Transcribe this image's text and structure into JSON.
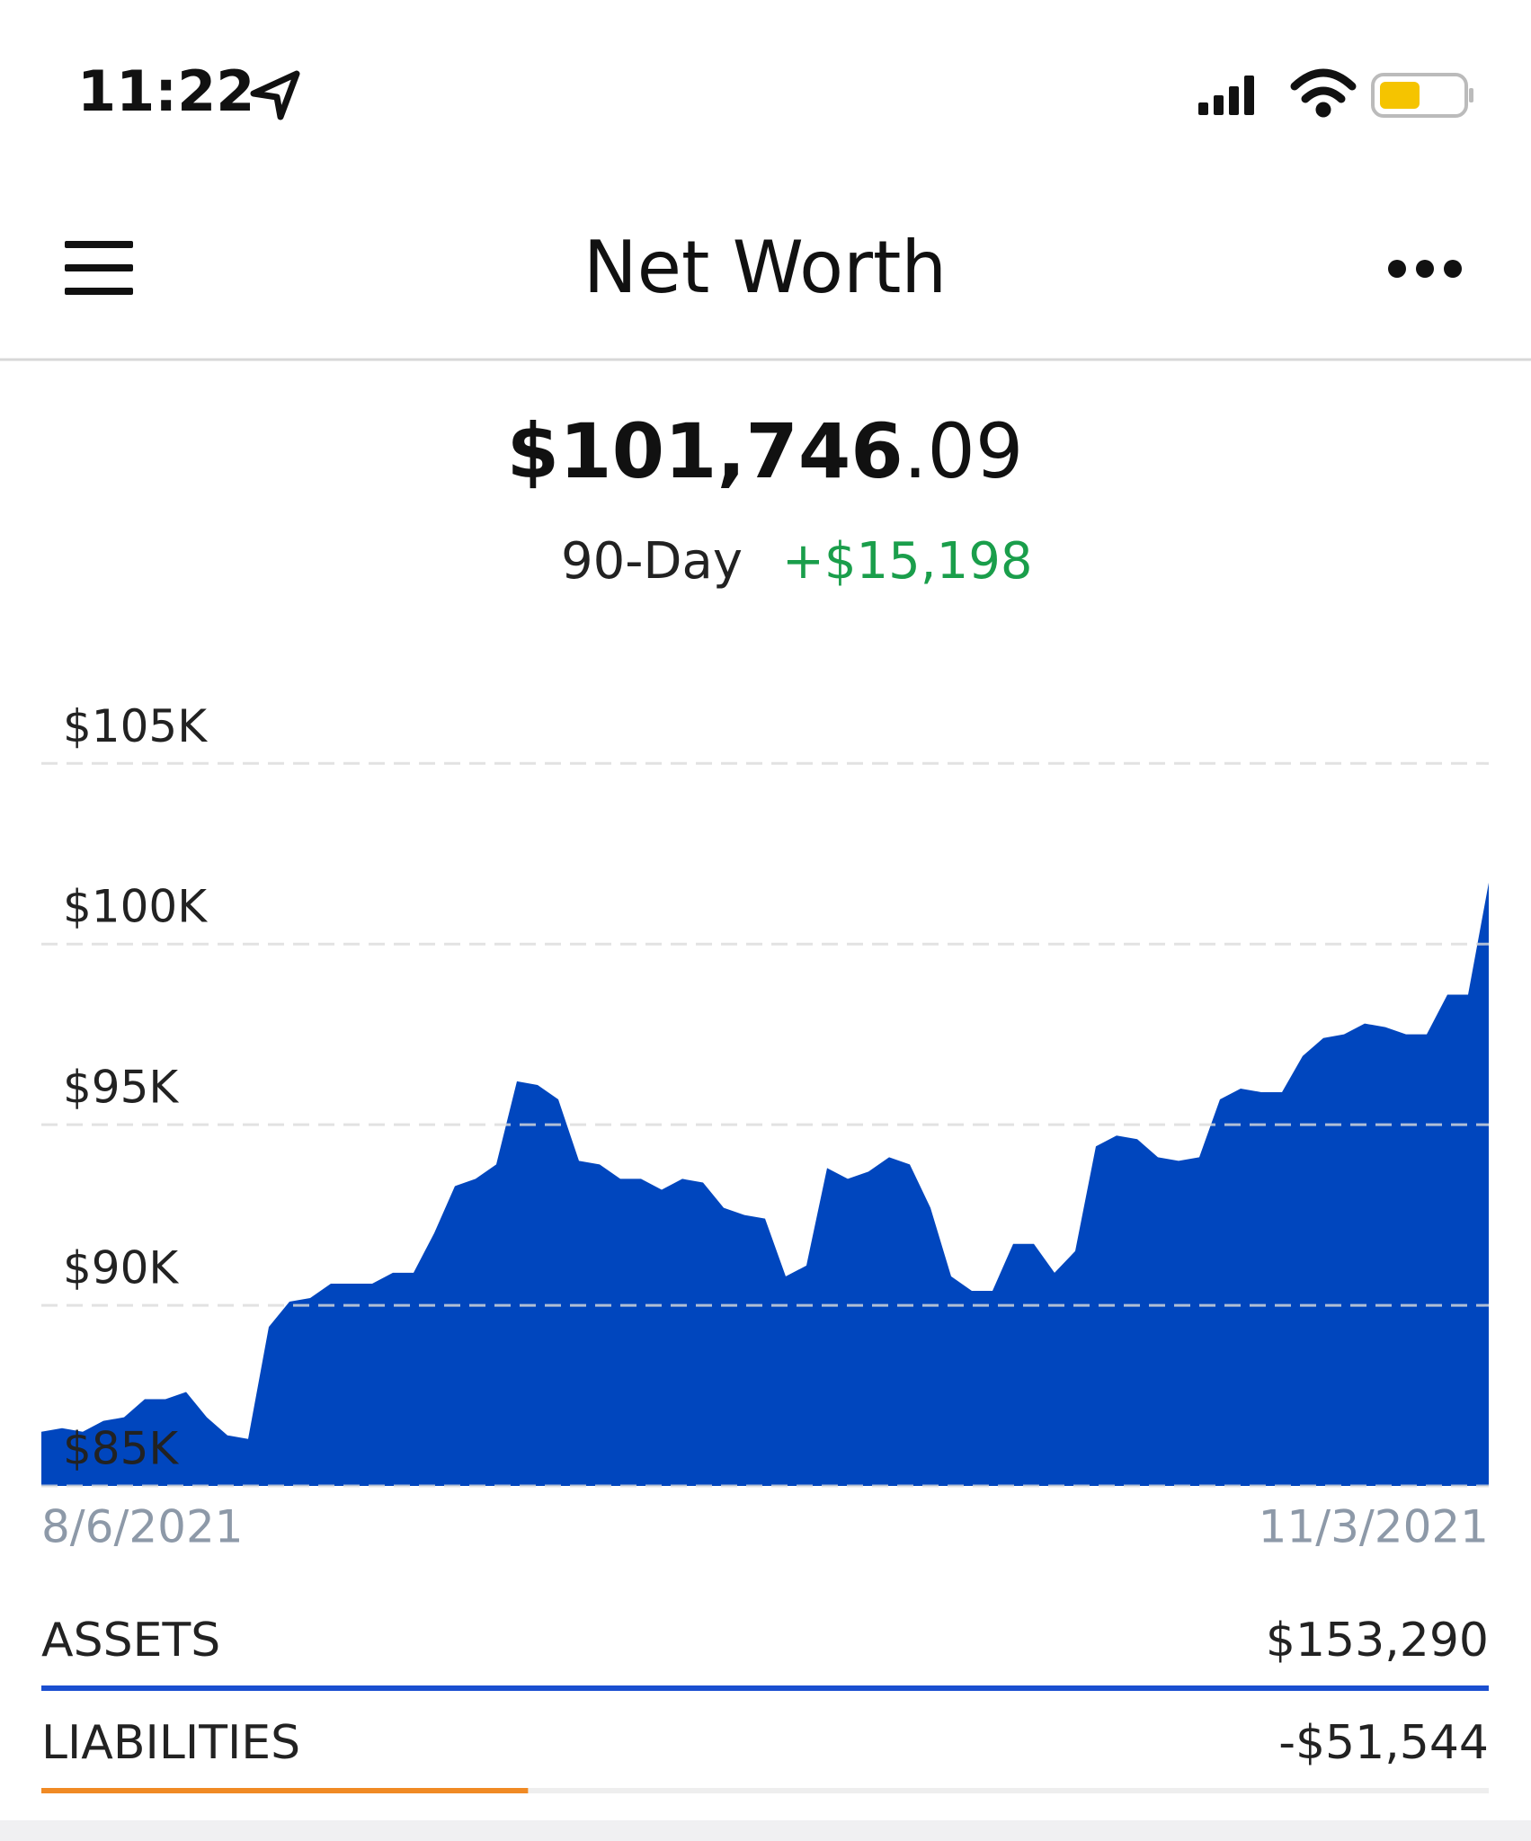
{
  "status_bar": {
    "time": "11:22"
  },
  "header": {
    "title": "Net Worth"
  },
  "summary": {
    "amount": "$101,746",
    "cents": ".09",
    "period": "90-Day",
    "change": "+$15,198"
  },
  "chart_data": {
    "type": "area",
    "categories": [
      "8/6/2021",
      null,
      null,
      null,
      null,
      null,
      null,
      null,
      null,
      null,
      null,
      null,
      null,
      null,
      null,
      null,
      null,
      null,
      null,
      null,
      null,
      null,
      null,
      null,
      null,
      null,
      null,
      null,
      null,
      null,
      null,
      null,
      null,
      null,
      null,
      null,
      null,
      null,
      null,
      null,
      null,
      null,
      null,
      null,
      null,
      null,
      null,
      null,
      null,
      null,
      null,
      null,
      null,
      null,
      null,
      null,
      null,
      null,
      null,
      null,
      null,
      null,
      null,
      null,
      null,
      null,
      null,
      null,
      null,
      null,
      "11/3/2021"
    ],
    "values": [
      86500,
      86600,
      86500,
      86800,
      86900,
      87400,
      87400,
      87600,
      86900,
      86400,
      86300,
      89400,
      90100,
      90200,
      90600,
      90600,
      90600,
      90900,
      90900,
      92000,
      93300,
      93500,
      93900,
      96200,
      96100,
      95700,
      94000,
      93900,
      93500,
      93500,
      93200,
      93500,
      93400,
      92700,
      92500,
      92400,
      90800,
      91100,
      93800,
      93500,
      93700,
      94100,
      93900,
      92700,
      90800,
      90400,
      90400,
      91700,
      91700,
      90900,
      91500,
      94400,
      94700,
      94600,
      94100,
      94000,
      94100,
      95700,
      96000,
      95900,
      95900,
      96900,
      97400,
      97500,
      97800,
      97700,
      97500,
      97500,
      98600,
      98600,
      101700
    ],
    "color": "#0046be",
    "ylim": [
      85000,
      106600
    ],
    "yticks": [
      {
        "value": 85000,
        "label": "$85K"
      },
      {
        "value": 90000,
        "label": "$90K"
      },
      {
        "value": 95000,
        "label": "$95K"
      },
      {
        "value": 100000,
        "label": "$100K"
      },
      {
        "value": 105000,
        "label": "$105K"
      }
    ],
    "grid": true
  },
  "breakdown": [
    {
      "label": "ASSETS",
      "value": 153290,
      "value_label": "$153,290",
      "color": "#1a4fd0"
    },
    {
      "label": "LIABILITIES",
      "value": -51544,
      "value_label": "-$51,544",
      "color": "#f08a24"
    }
  ]
}
